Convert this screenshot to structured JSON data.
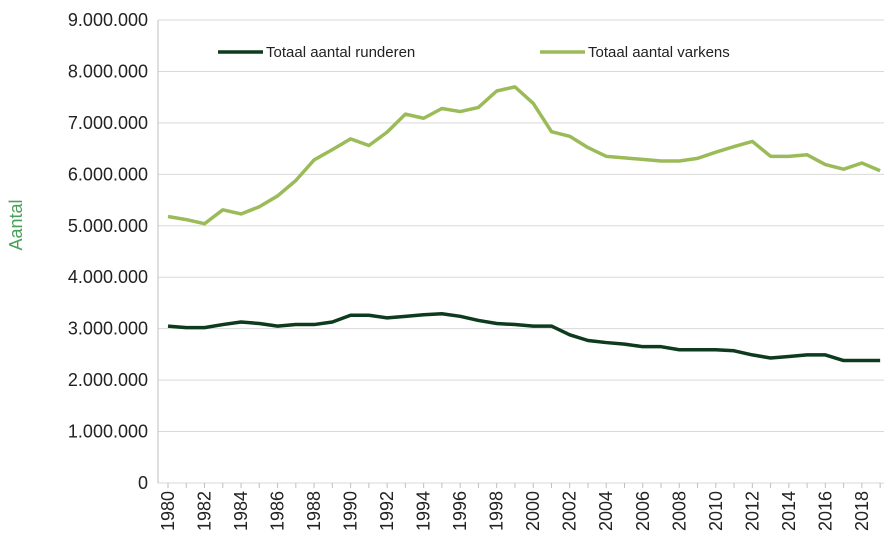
{
  "chart_data": {
    "type": "line",
    "y_label": "Aantal",
    "categories": [
      "1980",
      null,
      "1982",
      null,
      "1984",
      null,
      "1986",
      null,
      "1988",
      null,
      "1990",
      null,
      "1992",
      null,
      "1994",
      null,
      "1996",
      null,
      "1998",
      null,
      "2000",
      null,
      "2002",
      null,
      "2004",
      null,
      "2006",
      null,
      "2008",
      null,
      "2010",
      null,
      "2012",
      null,
      "2014",
      null,
      "2016",
      null,
      "2018",
      null
    ],
    "series": [
      {
        "name": "Totaal aantal runderen",
        "color": "#0e3a1e",
        "values": [
          3050000,
          3020000,
          3020000,
          3080000,
          3130000,
          3100000,
          3050000,
          3080000,
          3080000,
          3130000,
          3260000,
          3260000,
          3210000,
          3240000,
          3270000,
          3290000,
          3240000,
          3160000,
          3100000,
          3080000,
          3050000,
          3050000,
          2880000,
          2770000,
          2730000,
          2700000,
          2650000,
          2650000,
          2590000,
          2590000,
          2590000,
          2570000,
          2490000,
          2430000,
          2460000,
          2490000,
          2490000,
          2380000,
          2380000,
          2380000
        ]
      },
      {
        "name": "Totaal aantal varkens",
        "color": "#9bbb59",
        "values": [
          5180000,
          5120000,
          5040000,
          5310000,
          5230000,
          5370000,
          5580000,
          5880000,
          6280000,
          6480000,
          6690000,
          6560000,
          6820000,
          7170000,
          7090000,
          7280000,
          7220000,
          7300000,
          7620000,
          7700000,
          7380000,
          6830000,
          6740000,
          6520000,
          6350000,
          6320000,
          6290000,
          6260000,
          6260000,
          6310000,
          6430000,
          6540000,
          6640000,
          6350000,
          6350000,
          6380000,
          6190000,
          6100000,
          6220000,
          6070000
        ]
      }
    ],
    "ylim": [
      0,
      9000000
    ],
    "yticks": [
      0,
      {
        "value": 1000000,
        "label": "1.000.000"
      },
      {
        "value": 2000000,
        "label": "2.000.000"
      },
      {
        "value": 3000000,
        "label": "3.000.000"
      },
      {
        "value": 4000000,
        "label": "4.000.000"
      },
      {
        "value": 5000000,
        "label": "5.000.000"
      },
      {
        "value": 6000000,
        "label": "6.000.000"
      },
      {
        "value": 7000000,
        "label": "7.000.000"
      },
      {
        "value": 8000000,
        "label": "8.000.000"
      },
      {
        "value": 9000000,
        "label": "9.000.000"
      }
    ],
    "grid": true,
    "legend": "top"
  }
}
